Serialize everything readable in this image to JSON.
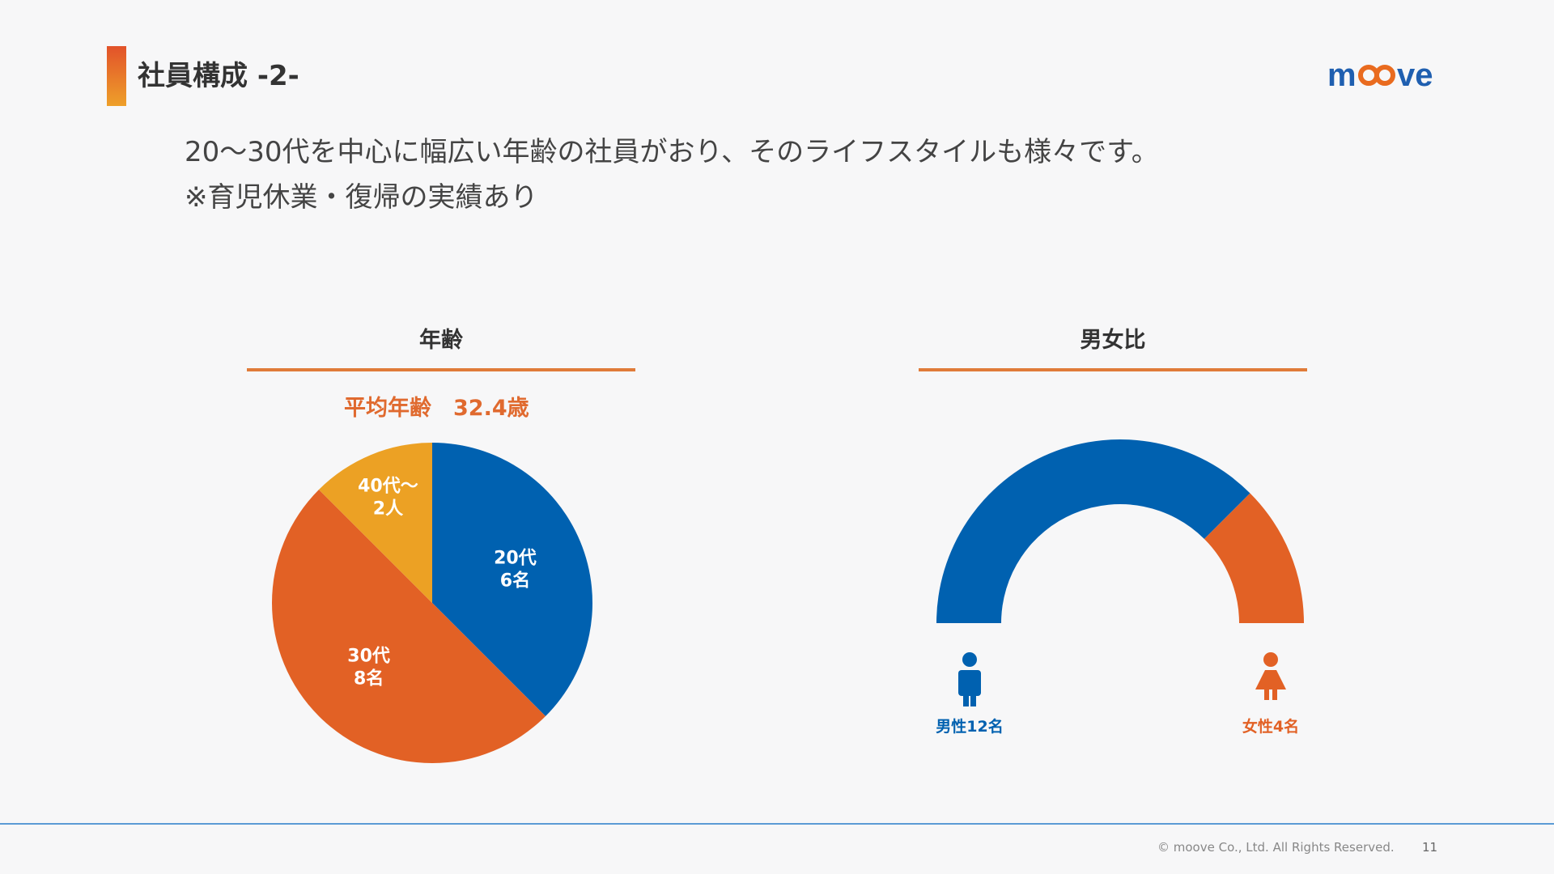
{
  "slide": {
    "title": "社員構成 -2-",
    "logo_text": "moove",
    "intro_line1": "20〜30代を中心に幅広い年齢の社員がおり、そのライフスタイルも様々です。",
    "intro_line2": "※育児休業・復帰の実績あり"
  },
  "footer": {
    "copyright": "© moove Co., Ltd. All Rights Reserved.",
    "page_number": "11"
  },
  "colors": {
    "blue": "#0061b0",
    "orange": "#e26125",
    "yellow": "#eca124",
    "accent_rule": "#e07b39"
  },
  "chart_data": [
    {
      "type": "pie",
      "title": "年齢",
      "subtitle": "平均年齢　32.4歳",
      "slices": [
        {
          "label_line1": "20代",
          "label_line2": "6名",
          "value": 6,
          "color": "#0061b0"
        },
        {
          "label_line1": "30代",
          "label_line2": "8名",
          "value": 8,
          "color": "#e26125"
        },
        {
          "label_line1": "40代〜",
          "label_line2": "2人",
          "value": 2,
          "color": "#eca124"
        }
      ]
    },
    {
      "type": "pie",
      "title": "男女比",
      "style": "half-donut",
      "slices": [
        {
          "label": "男性12名",
          "value": 12,
          "color": "#0061b0",
          "icon": "male-person-icon"
        },
        {
          "label": "女性4名",
          "value": 4,
          "color": "#e26125",
          "icon": "female-person-icon"
        }
      ]
    }
  ]
}
